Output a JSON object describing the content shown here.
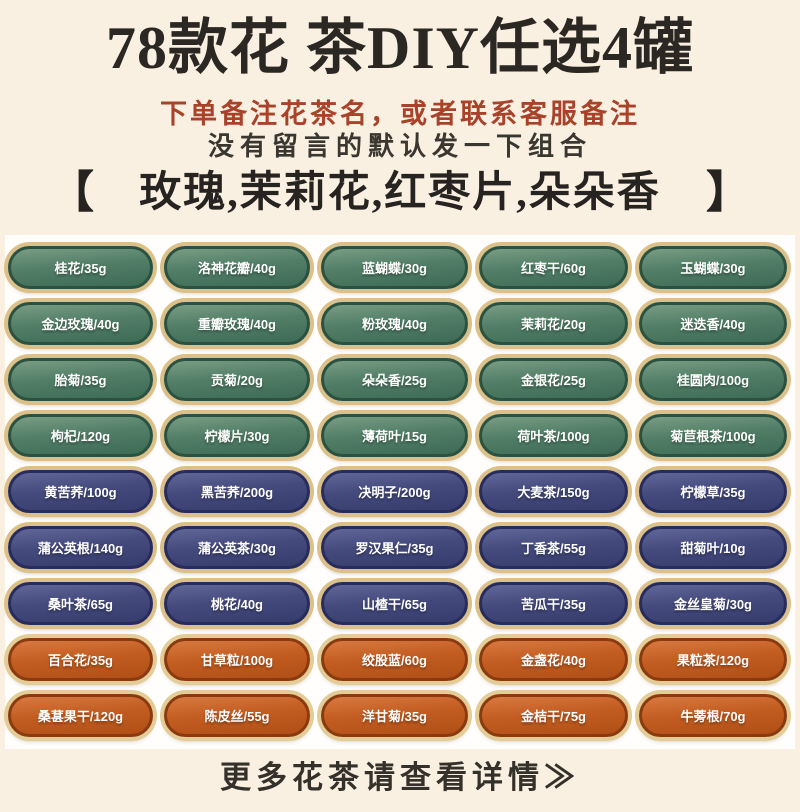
{
  "header": {
    "title": "78款花 茶DIY任选4罐",
    "note_red": "下单备注花茶名，或者联系客服备注",
    "note_gray": "没有留言的默认发一下组合",
    "bracket_left": "【",
    "bracket_right": "】",
    "default_combo": "玫瑰,茉莉花,红枣片,朵朵香"
  },
  "palette": {
    "page_background": "#f9f0e2",
    "grid_band_background": "#fffefc",
    "title_color": "#2b2722",
    "note_red_color": "#a8432a",
    "green_pill": {
      "top": "#799d84",
      "bottom": "#3e6b56",
      "edge": "#2b5140",
      "ring": "#dcc089"
    },
    "navy_pill": {
      "top": "#62679a",
      "bottom": "#363c6e",
      "edge": "#272c5c",
      "ring": "#dcc089"
    },
    "orange_pill": {
      "top": "#d87a40",
      "bottom": "#b04f15",
      "edge": "#8a3a0e",
      "ring": "#e3cc95"
    },
    "pill_text_color": "#ffffff"
  },
  "grid": {
    "rows": [
      {
        "color": "green",
        "cells": [
          "桂花/35g",
          "洛神花瓣/40g",
          "蓝蝴蝶/30g",
          "红枣干/60g",
          "玉蝴蝶/30g"
        ]
      },
      {
        "color": "green",
        "cells": [
          "金边玫瑰/40g",
          "重瓣玫瑰/40g",
          "粉玫瑰/40g",
          "茉莉花/20g",
          "迷迭香/40g"
        ]
      },
      {
        "color": "green",
        "cells": [
          "胎菊/35g",
          "贡菊/20g",
          "朵朵香/25g",
          "金银花/25g",
          "桂圆肉/100g"
        ]
      },
      {
        "color": "green",
        "cells": [
          "枸杞/120g",
          "柠檬片/30g",
          "薄荷叶/15g",
          "荷叶茶/100g",
          "菊苣根茶/100g"
        ]
      },
      {
        "color": "navy",
        "cells": [
          "黄苦荞/100g",
          "黑苦荞/200g",
          "决明子/200g",
          "大麦茶/150g",
          "柠檬草/35g"
        ]
      },
      {
        "color": "navy",
        "cells": [
          "蒲公英根/140g",
          "蒲公英茶/30g",
          "罗汉果仁/35g",
          "丁香茶/55g",
          "甜菊叶/10g"
        ]
      },
      {
        "color": "navy",
        "cells": [
          "桑叶茶/65g",
          "桃花/40g",
          "山楂干/65g",
          "苦瓜干/35g",
          "金丝皇菊/30g"
        ]
      },
      {
        "color": "orange",
        "cells": [
          "百合花/35g",
          "甘草粒/100g",
          "绞股蓝/60g",
          "金盏花/40g",
          "果粒茶/120g"
        ]
      },
      {
        "color": "orange",
        "cells": [
          "桑葚果干/120g",
          "陈皮丝/55g",
          "洋甘菊/35g",
          "金桔干/75g",
          "牛蒡根/70g"
        ]
      }
    ]
  },
  "footer": {
    "more_text": "更多花茶请查看详情≫"
  }
}
